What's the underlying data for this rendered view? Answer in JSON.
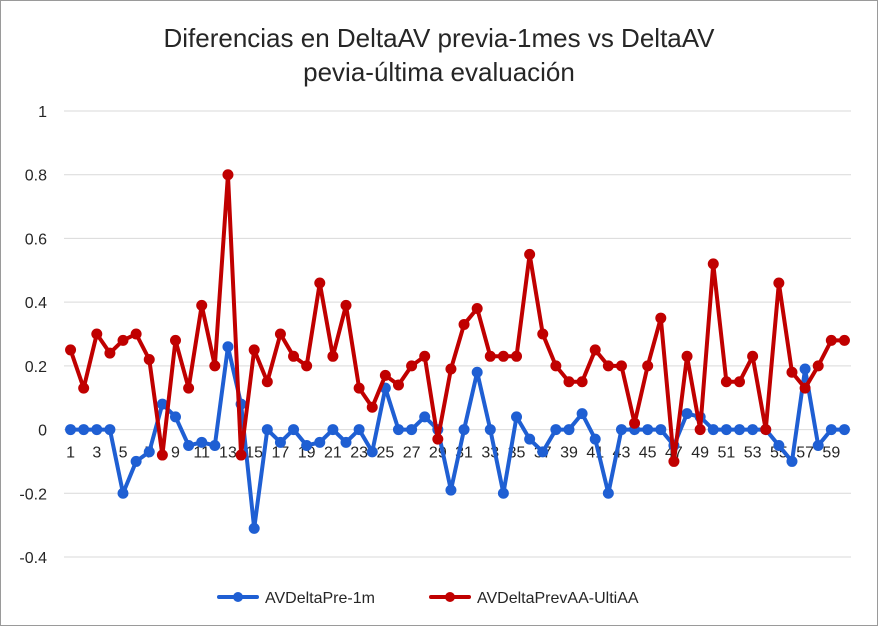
{
  "chart_data": {
    "type": "line",
    "title_lines": [
      "Diferencias en DeltaAV previa-1mes vs DeltaAV",
      "pevia-última evaluación"
    ],
    "xlabel": "",
    "ylabel": "",
    "ylim": [
      -0.4,
      1
    ],
    "yticks": [
      "-0.4",
      "-0.2",
      "0",
      "0.2",
      "0.4",
      "0.6",
      "0.8",
      "1"
    ],
    "grid": true,
    "legend_position": "bottom",
    "x": [
      1,
      2,
      3,
      4,
      5,
      6,
      7,
      8,
      9,
      10,
      11,
      12,
      13,
      14,
      15,
      16,
      17,
      18,
      19,
      20,
      21,
      22,
      23,
      24,
      25,
      26,
      27,
      28,
      29,
      30,
      31,
      32,
      33,
      34,
      35,
      36,
      37,
      38,
      39,
      40,
      41,
      42,
      43,
      44,
      45,
      46,
      47,
      48,
      49,
      50,
      51,
      52,
      53,
      54,
      55,
      56,
      57,
      58,
      59,
      60
    ],
    "xtick_labels": [
      "1",
      "3",
      "5",
      "7",
      "9",
      "11",
      "13",
      "15",
      "17",
      "19",
      "21",
      "23",
      "25",
      "27",
      "29",
      "31",
      "33",
      "35",
      "37",
      "39",
      "41",
      "43",
      "45",
      "47",
      "49",
      "51",
      "53",
      "55",
      "57",
      "59"
    ],
    "series": [
      {
        "name": "AVDeltaPre-1m",
        "color": "#1f5fd3",
        "values": [
          0,
          0,
          0,
          0,
          -0.2,
          -0.1,
          -0.07,
          0.08,
          0.04,
          -0.05,
          -0.04,
          -0.05,
          0.26,
          0.08,
          -0.31,
          0,
          -0.04,
          0,
          -0.05,
          -0.04,
          0,
          -0.04,
          0,
          -0.07,
          0.13,
          0,
          0,
          0.04,
          0,
          -0.19,
          0,
          0.18,
          0,
          -0.2,
          0.04,
          -0.03,
          -0.07,
          0,
          0,
          0.05,
          -0.03,
          -0.2,
          0,
          0,
          0,
          0,
          -0.05,
          0.05,
          0.04,
          0,
          0,
          0,
          0,
          0,
          -0.05,
          -0.1,
          0.19,
          -0.05,
          0,
          0
        ]
      },
      {
        "name": "AVDeltaPrevAA-UltiAA",
        "color": "#c00000",
        "values": [
          0.25,
          0.13,
          0.3,
          0.24,
          0.28,
          0.3,
          0.22,
          -0.08,
          0.28,
          0.13,
          0.39,
          0.2,
          0.8,
          -0.08,
          0.25,
          0.15,
          0.3,
          0.23,
          0.2,
          0.46,
          0.23,
          0.39,
          0.13,
          0.07,
          0.17,
          0.14,
          0.2,
          0.23,
          -0.03,
          0.19,
          0.33,
          0.38,
          0.23,
          0.23,
          0.23,
          0.55,
          0.3,
          0.2,
          0.15,
          0.15,
          0.25,
          0.2,
          0.2,
          0.02,
          0.2,
          0.35,
          -0.1,
          0.23,
          0,
          0.52,
          0.15,
          0.15,
          0.23,
          0,
          0.46,
          0.18,
          0.13,
          0.2,
          0.28,
          0.28
        ]
      }
    ]
  }
}
